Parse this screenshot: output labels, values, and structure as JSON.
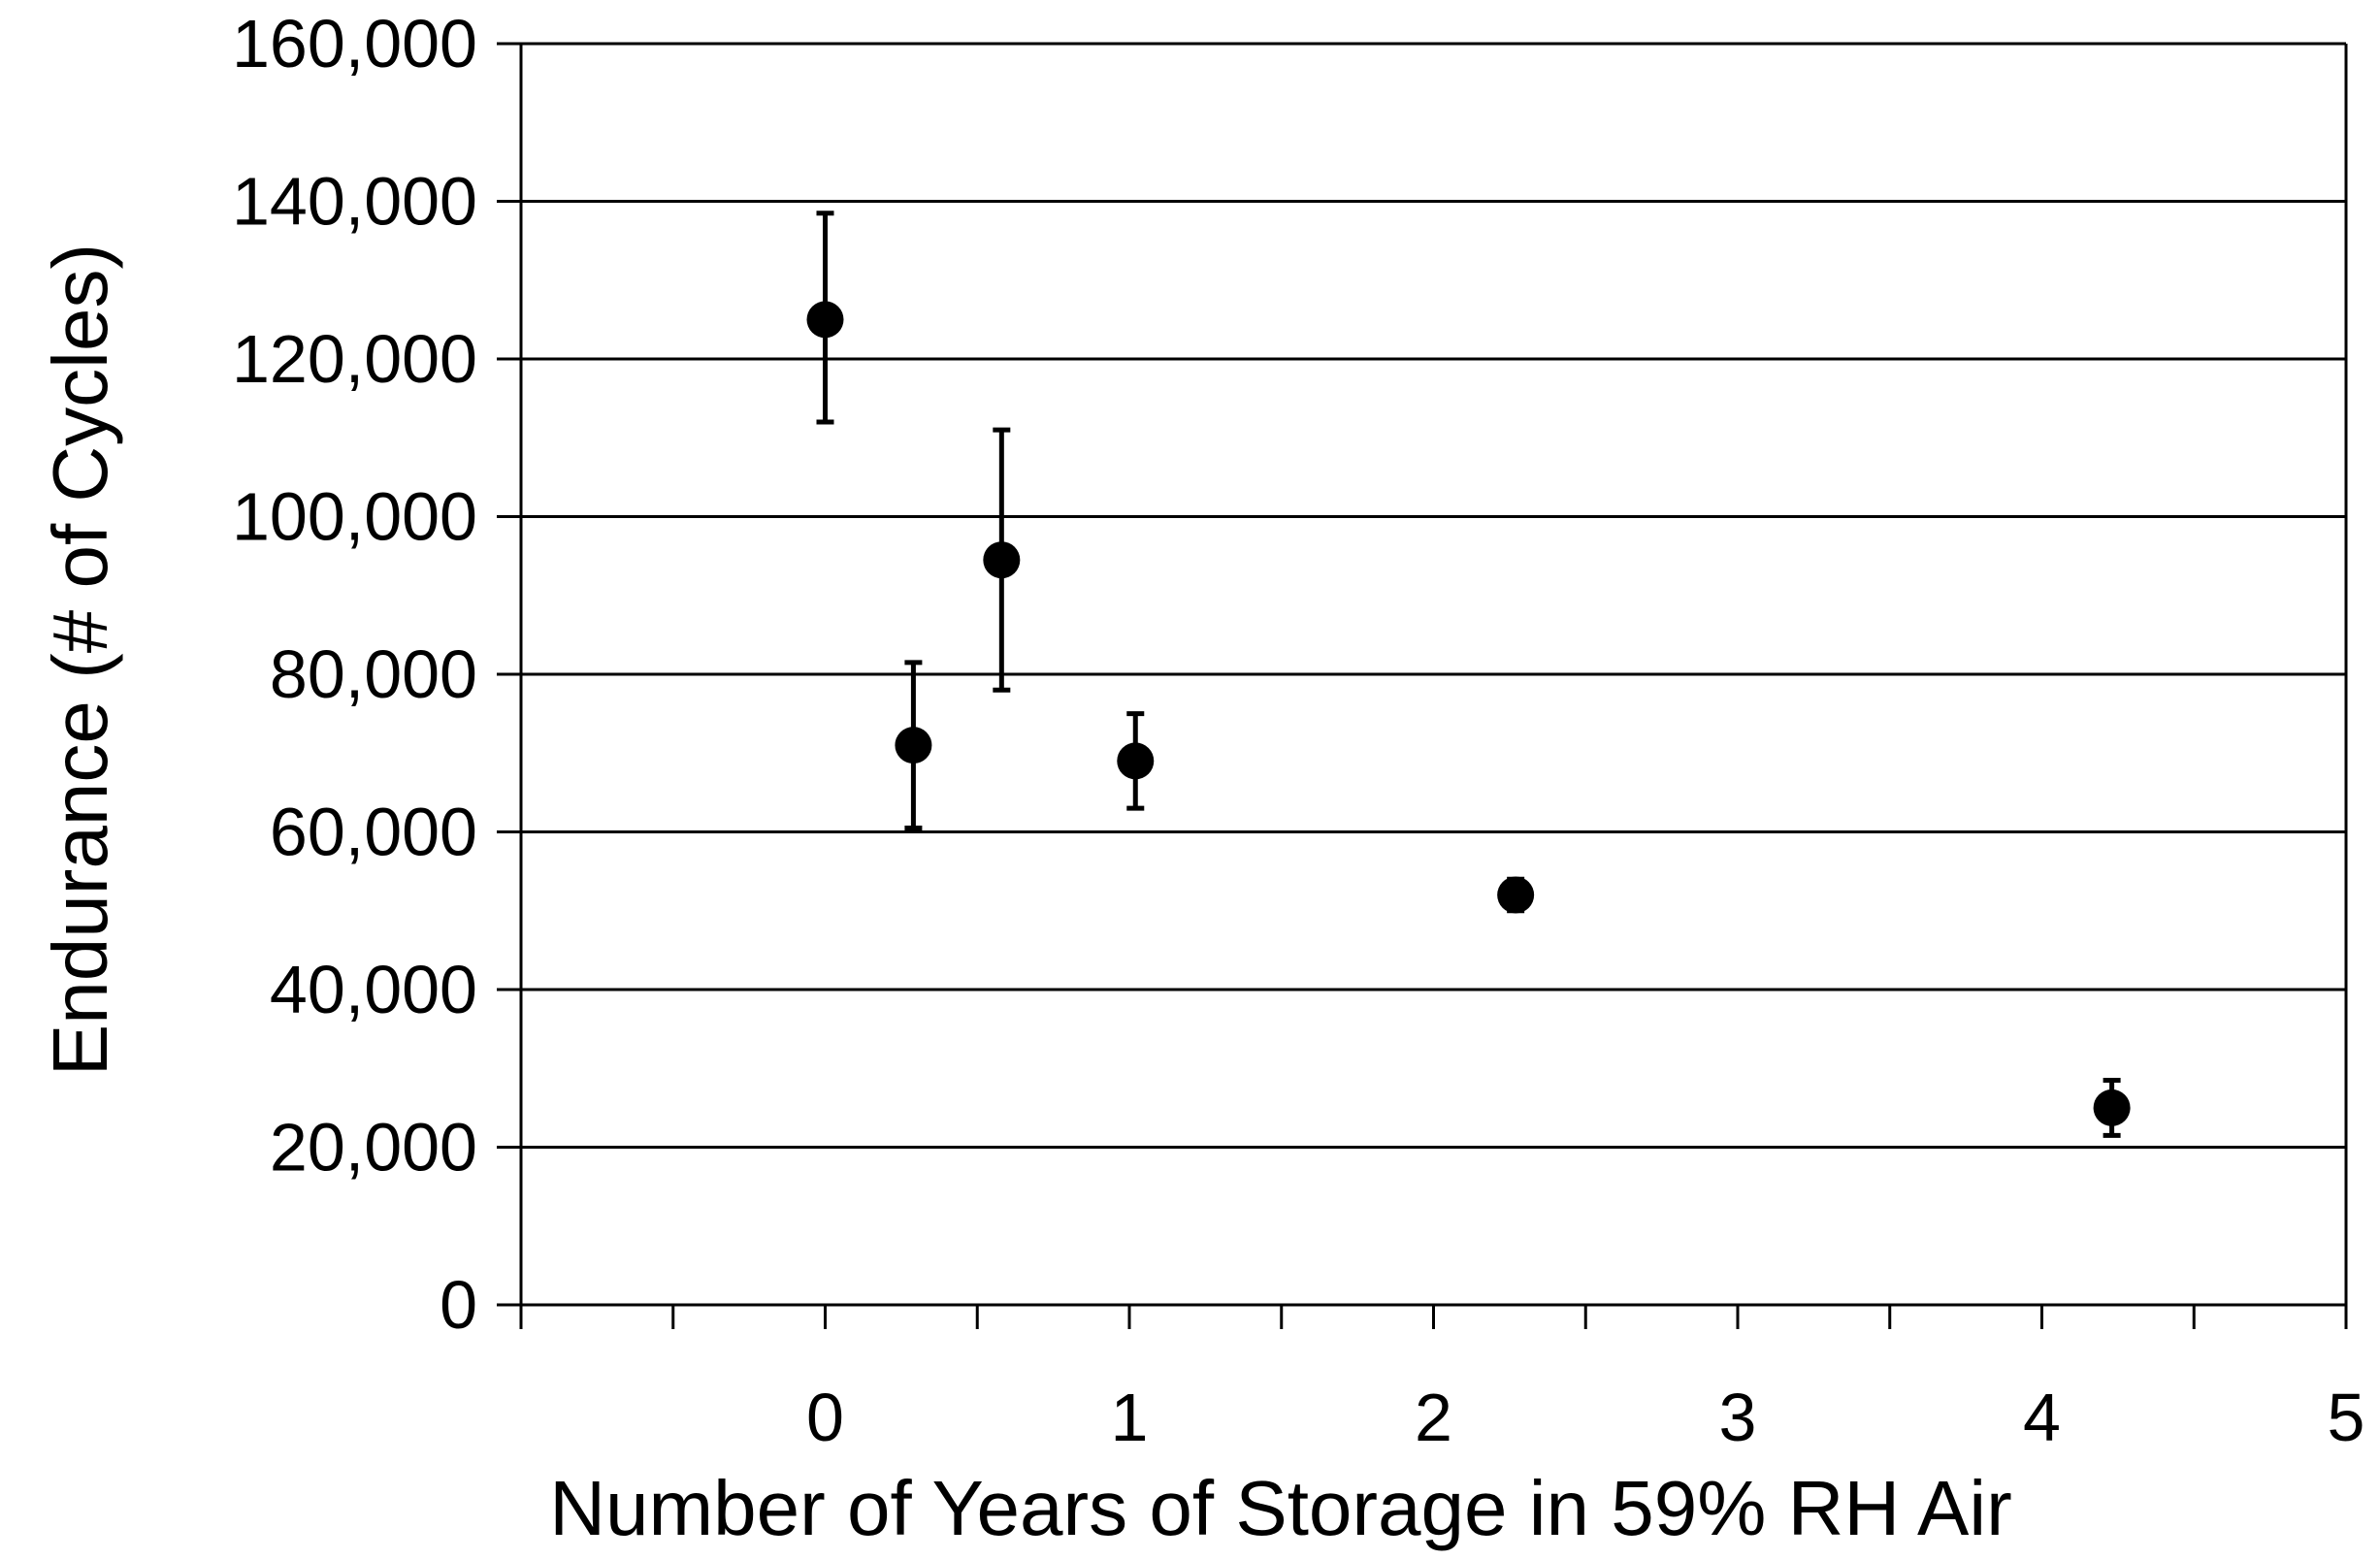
{
  "chart_data": {
    "type": "scatter",
    "title": "",
    "xlabel": "Number of Years of Storage in 59% RH Air",
    "ylabel": "Endurance (# of Cycles)",
    "xlim": [
      -1,
      5
    ],
    "ylim": [
      0,
      160000
    ],
    "x_ticks": [
      0,
      1,
      2,
      3,
      4,
      5
    ],
    "x_tick_labels": [
      "0",
      "1",
      "2",
      "3",
      "4",
      "5"
    ],
    "y_ticks": [
      0,
      20000,
      40000,
      60000,
      80000,
      100000,
      120000,
      140000,
      160000
    ],
    "y_tick_labels": [
      "0",
      "20,000",
      "40,000",
      "60,000",
      "80,000",
      "100,000",
      "120,000",
      "140,000",
      "160,000"
    ],
    "grid": "horizontal",
    "legend": "none",
    "marker_color": "#000000",
    "points": [
      {
        "x": 0.0,
        "y": 125000,
        "y_low": 112000,
        "y_high": 138500
      },
      {
        "x": 0.29,
        "y": 71000,
        "y_low": 60500,
        "y_high": 81500
      },
      {
        "x": 0.58,
        "y": 94500,
        "y_low": 78000,
        "y_high": 111000
      },
      {
        "x": 1.02,
        "y": 69000,
        "y_low": 63000,
        "y_high": 75000
      },
      {
        "x": 2.27,
        "y": 52000,
        "y_low": 50000,
        "y_high": 54000
      },
      {
        "x": 4.23,
        "y": 25000,
        "y_low": 21500,
        "y_high": 28500
      }
    ]
  }
}
